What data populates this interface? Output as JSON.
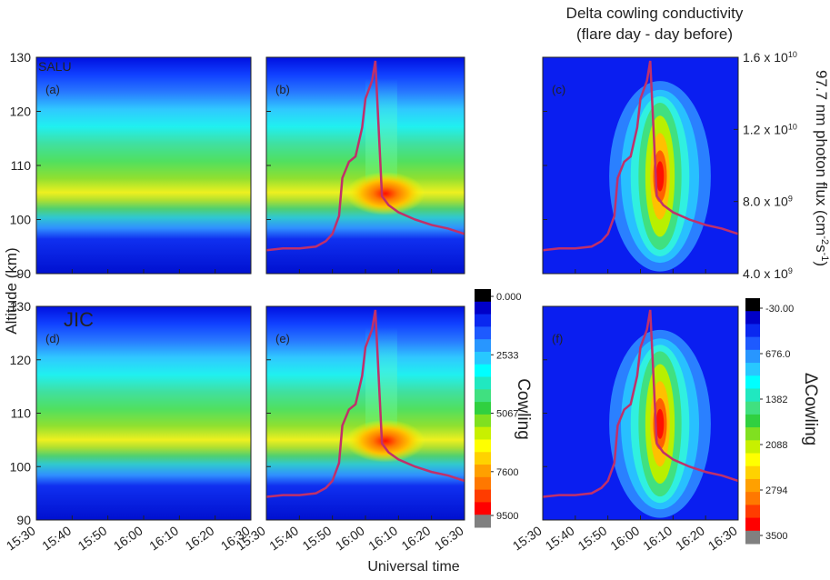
{
  "chart_data": {
    "type": "contour",
    "title": [
      "Delta cowling conductivity",
      "(flare day - day before)"
    ],
    "ylabel": "Altitude (km)",
    "xlabel": "Universal time",
    "y2label": [
      "97.7 nm photon flux (cm",
      "-2",
      "s",
      "-1",
      ")"
    ],
    "ylim": [
      90,
      130
    ],
    "yticks": [
      90,
      100,
      110,
      120,
      130
    ],
    "xlim": [
      "15:30",
      "16:30"
    ],
    "xticks": [
      "15:30",
      "15:40",
      "15:50",
      "16:00",
      "16:10",
      "16:20",
      "16:30"
    ],
    "y2lim": [
      4000000000,
      16000000000
    ],
    "y2ticks": [
      {
        "value": 4000000000,
        "label": "4.0 x 10",
        "exp": "9"
      },
      {
        "value": 8000000000,
        "label": "8.0 x 10",
        "exp": "9"
      },
      {
        "value": 12000000000,
        "label": "1.2 x 10",
        "exp": "10"
      },
      {
        "value": 16000000000,
        "label": "1.6 x 10",
        "exp": "10"
      }
    ],
    "panels": [
      {
        "label": "(a)",
        "station": "SALU",
        "flux": false
      },
      {
        "label": "(b)",
        "flux": true
      },
      {
        "label": "(c)",
        "flux": true
      },
      {
        "label": "(d)",
        "station": "JIC",
        "flux": false
      },
      {
        "label": "(e)",
        "flux": true
      },
      {
        "label": "(f)",
        "flux": true
      }
    ],
    "flux": {
      "color": "#c0306a",
      "x": [
        "15:30",
        "15:35",
        "15:40",
        "15:45",
        "15:48",
        "15:50",
        "15:52",
        "15:53",
        "15:55",
        "15:57",
        "15:59",
        "16:00",
        "16:02",
        "16:03",
        "16:05",
        "16:07",
        "16:10",
        "16:15",
        "16:20",
        "16:25",
        "16:30"
      ],
      "values": [
        5300000000,
        5400000000,
        5400000000,
        5500000000,
        5800000000,
        6200000000,
        7200000000,
        9300000000,
        10200000000,
        10500000000,
        12100000000,
        13700000000,
        14700000000,
        15800000000,
        8300000000,
        7800000000,
        7400000000,
        7000000000,
        6700000000,
        6500000000,
        6200000000
      ]
    },
    "colorbars": [
      {
        "title": "Cowling",
        "lim": [
          0,
          9500
        ],
        "ticks": [
          {
            "value": 0,
            "label": "0.000"
          },
          2533,
          5067,
          7600,
          9500
        ]
      },
      {
        "title": "ΔCowling",
        "lim": [
          -30,
          3500
        ],
        "ticks": [
          {
            "value": -30,
            "label": "-30.00"
          },
          {
            "value": 676,
            "label": "676.0"
          },
          1382,
          2088,
          2794,
          3500
        ]
      }
    ],
    "colorbar_colors": [
      "#000000",
      "#0000c8",
      "#0a28f0",
      "#1e5aff",
      "#2896ff",
      "#28c8ff",
      "#00ffff",
      "#20e8c0",
      "#40e080",
      "#30d040",
      "#80e020",
      "#c8f000",
      "#ffff00",
      "#ffd200",
      "#ffa000",
      "#ff7800",
      "#ff3c00",
      "#ff0000",
      "#808080"
    ]
  }
}
